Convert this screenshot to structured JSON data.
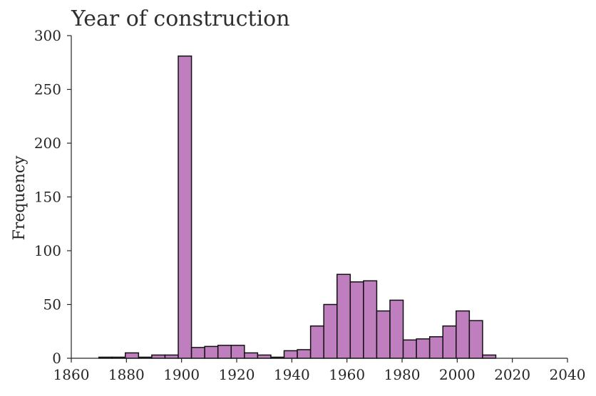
{
  "chart_data": {
    "type": "bar",
    "title": "Year of construction",
    "xlabel": "",
    "ylabel": "Frequency",
    "bar_color": "#bf7fbf",
    "edge_color": "#111111",
    "grid": false,
    "xlim": [
      1860,
      2040
    ],
    "ylim": [
      0,
      300
    ],
    "x_ticks": [
      1860,
      1880,
      1900,
      1920,
      1940,
      1960,
      1980,
      2000,
      2020,
      2040
    ],
    "y_ticks": [
      0,
      50,
      100,
      150,
      200,
      250,
      300
    ],
    "bin_width": 4.8,
    "bins": [
      {
        "start": 1870.0,
        "end": 1874.8,
        "value": 1
      },
      {
        "start": 1874.8,
        "end": 1879.6,
        "value": 1
      },
      {
        "start": 1879.6,
        "end": 1884.4,
        "value": 5
      },
      {
        "start": 1884.4,
        "end": 1889.2,
        "value": 1
      },
      {
        "start": 1889.2,
        "end": 1894.0,
        "value": 3
      },
      {
        "start": 1894.0,
        "end": 1898.8,
        "value": 3
      },
      {
        "start": 1898.8,
        "end": 1903.6,
        "value": 281
      },
      {
        "start": 1903.6,
        "end": 1908.4,
        "value": 10
      },
      {
        "start": 1908.4,
        "end": 1913.2,
        "value": 11
      },
      {
        "start": 1913.2,
        "end": 1918.0,
        "value": 12
      },
      {
        "start": 1918.0,
        "end": 1922.8,
        "value": 12
      },
      {
        "start": 1922.8,
        "end": 1927.6,
        "value": 5
      },
      {
        "start": 1927.6,
        "end": 1932.4,
        "value": 3
      },
      {
        "start": 1932.4,
        "end": 1937.2,
        "value": 1
      },
      {
        "start": 1937.2,
        "end": 1942.0,
        "value": 7
      },
      {
        "start": 1942.0,
        "end": 1946.8,
        "value": 8
      },
      {
        "start": 1946.8,
        "end": 1951.6,
        "value": 30
      },
      {
        "start": 1951.6,
        "end": 1956.4,
        "value": 50
      },
      {
        "start": 1956.4,
        "end": 1961.2,
        "value": 78
      },
      {
        "start": 1961.2,
        "end": 1966.0,
        "value": 71
      },
      {
        "start": 1966.0,
        "end": 1970.8,
        "value": 72
      },
      {
        "start": 1970.8,
        "end": 1975.6,
        "value": 44
      },
      {
        "start": 1975.6,
        "end": 1980.4,
        "value": 54
      },
      {
        "start": 1980.4,
        "end": 1985.2,
        "value": 17
      },
      {
        "start": 1985.2,
        "end": 1990.0,
        "value": 18
      },
      {
        "start": 1990.0,
        "end": 1994.8,
        "value": 20
      },
      {
        "start": 1994.8,
        "end": 1999.6,
        "value": 30
      },
      {
        "start": 1999.6,
        "end": 2004.4,
        "value": 44
      },
      {
        "start": 2004.4,
        "end": 2009.2,
        "value": 35
      },
      {
        "start": 2009.2,
        "end": 2014.0,
        "value": 3
      }
    ]
  }
}
